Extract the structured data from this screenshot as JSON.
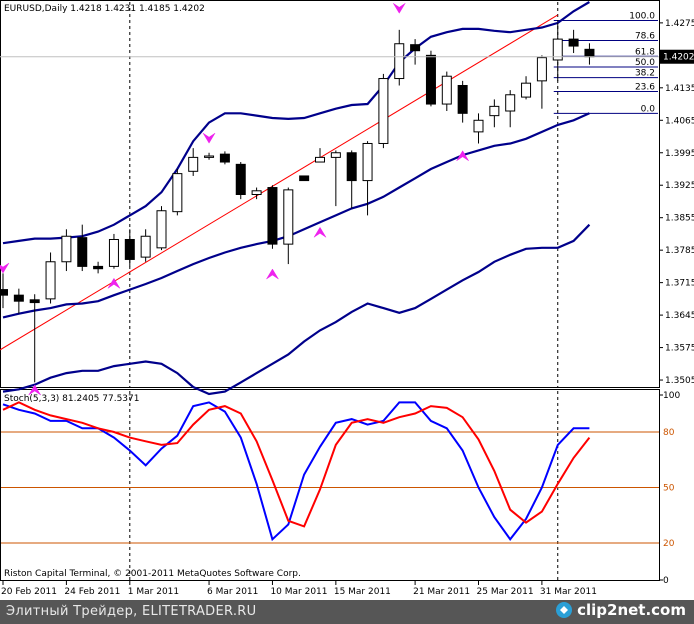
{
  "chart_data": [
    {
      "type": "candlestick",
      "symbol": "EURUSD",
      "timeframe": "Daily",
      "header": "EURUSD,Daily  1.4218 1.4231 1.4185 1.4202",
      "ohlc_header": {
        "open": 1.4218,
        "high": 1.4231,
        "low": 1.4185,
        "close": 1.4202
      },
      "ylim": [
        1.349,
        1.432
      ],
      "y_ticks": [
        "1.4275",
        "1.4202",
        "1.4135",
        "1.4065",
        "1.3995",
        "1.3925",
        "1.3855",
        "1.3785",
        "1.3715",
        "1.3645",
        "1.3575",
        "1.3505"
      ],
      "y_tick_values": [
        1.4275,
        1.4202,
        1.4135,
        1.4065,
        1.3995,
        1.3925,
        1.3855,
        1.3785,
        1.3715,
        1.3645,
        1.3575,
        1.3505
      ],
      "current_price": "1.4202",
      "x_labels": [
        "20 Feb 2011",
        "24 Feb 2011",
        "1 Mar 2011",
        "6 Mar 2011",
        "10 Mar 2011",
        "15 Mar 2011",
        "21 Mar 2011",
        "25 Mar 2011",
        "31 Mar 2011"
      ],
      "x_label_bar_index": [
        0,
        4,
        8,
        13,
        17,
        21,
        26,
        30,
        34
      ],
      "candles": [
        {
          "o": 1.37,
          "h": 1.3735,
          "l": 1.366,
          "c": 1.3688
        },
        {
          "o": 1.3688,
          "h": 1.3702,
          "l": 1.3648,
          "c": 1.3675
        },
        {
          "o": 1.3678,
          "h": 1.369,
          "l": 1.35,
          "c": 1.3672
        },
        {
          "o": 1.368,
          "h": 1.378,
          "l": 1.367,
          "c": 1.376
        },
        {
          "o": 1.376,
          "h": 1.383,
          "l": 1.374,
          "c": 1.3815
        },
        {
          "o": 1.3812,
          "h": 1.384,
          "l": 1.374,
          "c": 1.375
        },
        {
          "o": 1.375,
          "h": 1.376,
          "l": 1.3735,
          "c": 1.3745
        },
        {
          "o": 1.375,
          "h": 1.382,
          "l": 1.3745,
          "c": 1.3808
        },
        {
          "o": 1.3808,
          "h": 1.383,
          "l": 1.375,
          "c": 1.3765
        },
        {
          "o": 1.377,
          "h": 1.383,
          "l": 1.376,
          "c": 1.3815
        },
        {
          "o": 1.379,
          "h": 1.388,
          "l": 1.3785,
          "c": 1.387
        },
        {
          "o": 1.3868,
          "h": 1.396,
          "l": 1.386,
          "c": 1.395
        },
        {
          "o": 1.3955,
          "h": 1.4005,
          "l": 1.3945,
          "c": 1.3985
        },
        {
          "o": 1.3985,
          "h": 1.3995,
          "l": 1.398,
          "c": 1.3988
        },
        {
          "o": 1.3992,
          "h": 1.3998,
          "l": 1.397,
          "c": 1.3975
        },
        {
          "o": 1.397,
          "h": 1.3975,
          "l": 1.3895,
          "c": 1.3905
        },
        {
          "o": 1.3905,
          "h": 1.392,
          "l": 1.3895,
          "c": 1.3913
        },
        {
          "o": 1.392,
          "h": 1.3925,
          "l": 1.3788,
          "c": 1.3798
        },
        {
          "o": 1.3798,
          "h": 1.392,
          "l": 1.3755,
          "c": 1.3915
        },
        {
          "o": 1.3945,
          "h": 1.3945,
          "l": 1.3935,
          "c": 1.3935
        },
        {
          "o": 1.3975,
          "h": 1.4005,
          "l": 1.3975,
          "c": 1.3985
        },
        {
          "o": 1.3985,
          "h": 1.4,
          "l": 1.388,
          "c": 1.3995
        },
        {
          "o": 1.3995,
          "h": 1.4,
          "l": 1.3875,
          "c": 1.3935
        },
        {
          "o": 1.3935,
          "h": 1.402,
          "l": 1.386,
          "c": 1.4015
        },
        {
          "o": 1.4015,
          "h": 1.4165,
          "l": 1.4005,
          "c": 1.4155
        },
        {
          "o": 1.4155,
          "h": 1.426,
          "l": 1.414,
          "c": 1.423
        },
        {
          "o": 1.4228,
          "h": 1.424,
          "l": 1.4185,
          "c": 1.4215
        },
        {
          "o": 1.4205,
          "h": 1.4215,
          "l": 1.4095,
          "c": 1.41
        },
        {
          "o": 1.41,
          "h": 1.417,
          "l": 1.4085,
          "c": 1.416
        },
        {
          "o": 1.414,
          "h": 1.415,
          "l": 1.406,
          "c": 1.408
        },
        {
          "o": 1.404,
          "h": 1.408,
          "l": 1.4015,
          "c": 1.4065
        },
        {
          "o": 1.4075,
          "h": 1.411,
          "l": 1.405,
          "c": 1.4095
        },
        {
          "o": 1.4085,
          "h": 1.413,
          "l": 1.405,
          "c": 1.412
        },
        {
          "o": 1.4115,
          "h": 1.416,
          "l": 1.411,
          "c": 1.4145
        },
        {
          "o": 1.415,
          "h": 1.4205,
          "l": 1.409,
          "c": 1.42
        },
        {
          "o": 1.4195,
          "h": 1.4275,
          "l": 1.415,
          "c": 1.424
        },
        {
          "o": 1.424,
          "h": 1.426,
          "l": 1.421,
          "c": 1.4225
        },
        {
          "o": 1.4218,
          "h": 1.4231,
          "l": 1.4185,
          "c": 1.4202
        }
      ],
      "bollinger": {
        "upper": [
          1.38,
          1.3805,
          1.381,
          1.381,
          1.3812,
          1.3815,
          1.3825,
          1.384,
          1.386,
          1.388,
          1.391,
          1.396,
          1.402,
          1.406,
          1.408,
          1.408,
          1.4075,
          1.407,
          1.4068,
          1.407,
          1.408,
          1.409,
          1.4098,
          1.41,
          1.414,
          1.419,
          1.422,
          1.4245,
          1.4255,
          1.4262,
          1.4262,
          1.4258,
          1.4255,
          1.426,
          1.4265,
          1.4275,
          1.43,
          1.432
        ],
        "middle": [
          1.364,
          1.3648,
          1.3655,
          1.366,
          1.3668,
          1.367,
          1.3675,
          1.3688,
          1.37,
          1.3712,
          1.3725,
          1.374,
          1.3755,
          1.3768,
          1.378,
          1.379,
          1.3798,
          1.3805,
          1.3815,
          1.383,
          1.3845,
          1.386,
          1.3875,
          1.3885,
          1.39,
          1.392,
          1.394,
          1.396,
          1.3975,
          1.399,
          1.4,
          1.401,
          1.4015,
          1.4025,
          1.404,
          1.4055,
          1.4065,
          1.408
        ],
        "lower": [
          1.348,
          1.3485,
          1.3495,
          1.351,
          1.352,
          1.3525,
          1.3525,
          1.3535,
          1.354,
          1.3545,
          1.354,
          1.352,
          1.349,
          1.3475,
          1.348,
          1.35,
          1.352,
          1.354,
          1.356,
          1.3588,
          1.3612,
          1.363,
          1.3652,
          1.367,
          1.366,
          1.365,
          1.366,
          1.368,
          1.37,
          1.372,
          1.3738,
          1.376,
          1.3775,
          1.3788,
          1.379,
          1.379,
          1.3805,
          1.384
        ]
      },
      "trendline": {
        "from": {
          "bar": 0,
          "price": 1.357
        },
        "to": {
          "bar": 35,
          "price": 1.4292
        }
      },
      "fractals_up": [
        {
          "bar": 0,
          "price": 1.374
        },
        {
          "bar": 13,
          "price": 1.402
        },
        {
          "bar": 25,
          "price": 1.43
        }
      ],
      "fractals_down": [
        {
          "bar": 2,
          "price": 1.349
        },
        {
          "bar": 7,
          "price": 1.372
        },
        {
          "bar": 17,
          "price": 1.374
        },
        {
          "bar": 20,
          "price": 1.383
        },
        {
          "bar": 29,
          "price": 1.3995
        }
      ],
      "fibonacci": {
        "start_bar": 35,
        "levels": [
          {
            "label": "100.0",
            "price": 1.428
          },
          {
            "label": "78.6",
            "price": 1.4237
          },
          {
            "label": "61.8",
            "price": 1.4203
          },
          {
            "label": "50.0",
            "price": 1.418
          },
          {
            "label": "38.2",
            "price": 1.4157
          },
          {
            "label": "23.6",
            "price": 1.4127
          },
          {
            "label": "0.0",
            "price": 1.408
          }
        ]
      },
      "vertical_lines_bar": [
        8,
        35
      ],
      "colors": {
        "candle_up": "#ffffff",
        "candle_down": "#000000",
        "bands": "#00008b",
        "trendline": "#ff0000",
        "fractal": "#ee22ee",
        "fib": "#000080"
      }
    },
    {
      "type": "line",
      "title": "Stoch(5,3,3) 81.2405 77.5371",
      "ylim": [
        0,
        100
      ],
      "y_ticks": [
        "100",
        "80",
        "50",
        "20",
        "0"
      ],
      "y_tick_values": [
        100,
        80,
        50,
        20,
        0
      ],
      "level_lines": [
        80,
        50,
        20
      ],
      "series": [
        {
          "color": "#0000ff",
          "values": [
            95,
            92,
            90,
            86,
            86,
            82,
            82,
            77,
            70,
            62,
            71,
            78,
            94,
            96,
            91,
            77,
            52,
            22,
            30,
            57,
            72,
            85,
            87,
            84,
            86,
            96,
            96,
            86,
            82,
            70,
            50,
            34,
            22,
            33,
            50,
            73,
            82,
            82
          ]
        },
        {
          "color": "#ff0000",
          "values": [
            92,
            96,
            92,
            89,
            87,
            85,
            82,
            80,
            77,
            75,
            73,
            74,
            84,
            92,
            94,
            90,
            75,
            54,
            32,
            29,
            49,
            73,
            85,
            87,
            85,
            88,
            90,
            94,
            93,
            88,
            76,
            59,
            38,
            31,
            37,
            52,
            66,
            77
          ]
        }
      ],
      "colors": {
        "level_lines": "#cc5500"
      }
    }
  ],
  "footer": {
    "copyright": "Riston Capital Terminal, © 2001-2011 MetaQuotes Software Corp.",
    "bar_text": "Элитный Трейдер, ELITETRADER.RU",
    "brand": "clip2net.com"
  }
}
